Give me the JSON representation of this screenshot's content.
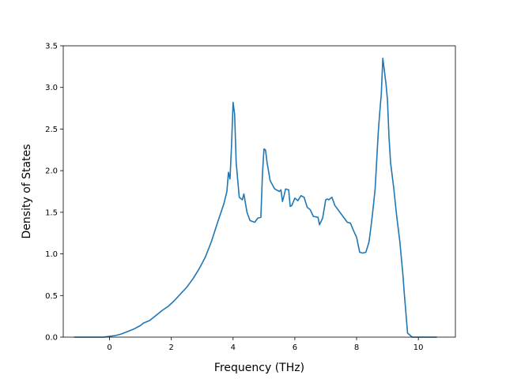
{
  "chart_data": {
    "type": "line",
    "title": "",
    "xlabel": "Frequency (THz)",
    "ylabel": "Density of States",
    "xlim": [
      -1.5,
      11.2
    ],
    "ylim": [
      0.0,
      3.5
    ],
    "grid": false,
    "x_ticks": [
      0,
      2,
      4,
      6,
      8,
      10
    ],
    "x_tick_labels": [
      "0",
      "2",
      "4",
      "6",
      "8",
      "10"
    ],
    "y_ticks": [
      0.0,
      0.5,
      1.0,
      1.5,
      2.0,
      2.5,
      3.0,
      3.5
    ],
    "y_tick_labels": [
      "0.0",
      "0.5",
      "1.0",
      "1.5",
      "2.0",
      "2.5",
      "3.0",
      "3.5"
    ],
    "series": [
      {
        "color": "#1f77b4",
        "x": [
          -1.15,
          -0.2,
          0.0,
          0.2,
          0.4,
          0.6,
          0.8,
          1.0,
          1.1,
          1.3,
          1.5,
          1.7,
          1.9,
          2.1,
          2.3,
          2.5,
          2.7,
          2.9,
          3.1,
          3.3,
          3.5,
          3.7,
          3.8,
          3.85,
          3.9,
          3.95,
          4.0,
          4.05,
          4.1,
          4.2,
          4.3,
          4.35,
          4.45,
          4.55,
          4.7,
          4.8,
          4.9,
          4.95,
          5.0,
          5.05,
          5.1,
          5.2,
          5.35,
          5.5,
          5.55,
          5.6,
          5.65,
          5.7,
          5.8,
          5.85,
          5.9,
          6.0,
          6.1,
          6.2,
          6.3,
          6.4,
          6.5,
          6.6,
          6.75,
          6.8,
          6.9,
          7.0,
          7.05,
          7.1,
          7.2,
          7.3,
          7.4,
          7.6,
          7.7,
          7.8,
          7.9,
          8.0,
          8.1,
          8.2,
          8.3,
          8.4,
          8.45,
          8.5,
          8.55,
          8.6,
          8.7,
          8.75,
          8.8,
          8.85,
          8.95,
          9.0,
          9.05,
          9.1,
          9.2,
          9.3,
          9.4,
          9.5,
          9.55,
          9.6,
          9.65,
          9.8,
          10.2,
          10.6
        ],
        "y": [
          0.0,
          0.0,
          0.01,
          0.02,
          0.04,
          0.07,
          0.1,
          0.14,
          0.17,
          0.2,
          0.26,
          0.32,
          0.37,
          0.44,
          0.52,
          0.6,
          0.7,
          0.82,
          0.96,
          1.15,
          1.38,
          1.6,
          1.75,
          1.98,
          1.9,
          2.3,
          2.82,
          2.68,
          2.1,
          1.68,
          1.65,
          1.72,
          1.5,
          1.4,
          1.38,
          1.43,
          1.44,
          1.95,
          2.26,
          2.25,
          2.1,
          1.88,
          1.78,
          1.75,
          1.77,
          1.63,
          1.7,
          1.78,
          1.77,
          1.57,
          1.58,
          1.67,
          1.64,
          1.7,
          1.68,
          1.56,
          1.53,
          1.45,
          1.44,
          1.35,
          1.43,
          1.65,
          1.66,
          1.65,
          1.68,
          1.58,
          1.53,
          1.43,
          1.38,
          1.37,
          1.28,
          1.2,
          1.02,
          1.01,
          1.02,
          1.14,
          1.28,
          1.43,
          1.6,
          1.78,
          2.45,
          2.7,
          2.92,
          3.35,
          3.05,
          2.85,
          2.4,
          2.1,
          1.8,
          1.45,
          1.15,
          0.75,
          0.5,
          0.28,
          0.05,
          0.0,
          0.0,
          0.0
        ]
      }
    ]
  }
}
